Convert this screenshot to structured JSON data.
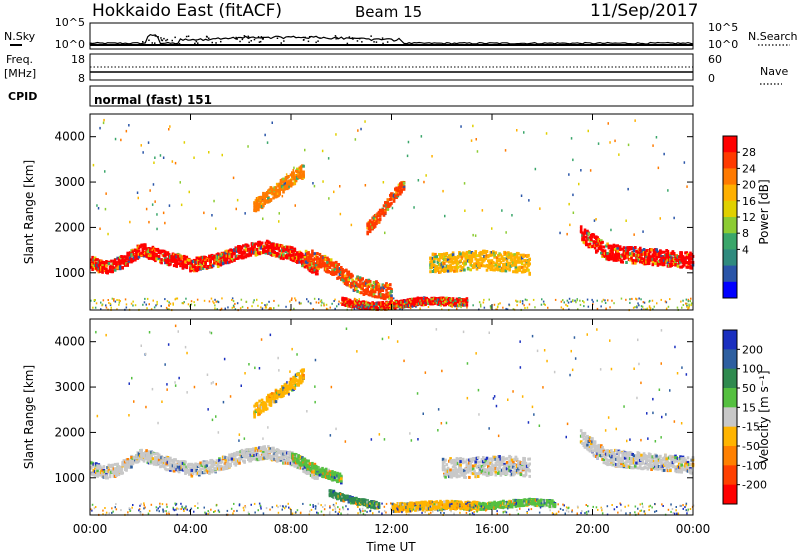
{
  "header": {
    "radar": "Hokkaido East (fitACF)",
    "beam": "Beam 15",
    "date": "11/Sep/2017"
  },
  "labels": {
    "nsky": "N.Sky",
    "nsearch": "N.Search",
    "freq": "Freq.",
    "freq_unit": "[MHz]",
    "nave": "Nave",
    "cpid": "CPID",
    "mode": "normal (fast) 151"
  },
  "noise_axis": {
    "left_ticks": [
      "10^5",
      "10^0"
    ],
    "right_ticks": [
      "10^5",
      "10^0"
    ]
  },
  "freq_axis": {
    "left_ticks": [
      "18",
      "8"
    ],
    "right_ticks": [
      "60",
      "0"
    ]
  },
  "range_ticks": [
    "4000",
    "3000",
    "2000",
    "1000"
  ],
  "range_axis_label": "Slant Range [km]",
  "x_ticks": [
    "00:00",
    "04:00",
    "08:00",
    "12:00",
    "16:00",
    "20:00",
    "00:00"
  ],
  "x_axis_label": "Time UT",
  "power_scale": {
    "label": "Power [dB]",
    "ticks": [
      "28",
      "24",
      "20",
      "16",
      "12",
      "8",
      "4"
    ],
    "colors": [
      "#ff0000",
      "#ff3a00",
      "#ff7a00",
      "#ffb000",
      "#e0d000",
      "#8ccc33",
      "#3aa66a",
      "#2f8a7e",
      "#2a55a8",
      "#0000ff"
    ]
  },
  "velocity_scale": {
    "label": "Velocity [m s⁻¹]",
    "ticks": [
      "200",
      "100",
      "50",
      "15",
      "-15",
      "-50",
      "-100",
      "-200"
    ],
    "colors": [
      "#1a2fbf",
      "#2e5fa0",
      "#2f8a4f",
      "#55c040",
      "#c8c8c8",
      "#ffb400",
      "#ff8000",
      "#ff4000",
      "#ff0000"
    ]
  },
  "chart_data": [
    {
      "type": "line",
      "title": "N.Sky / N.Search noise",
      "x_range_hours": [
        0,
        24
      ],
      "approx_level": "near 10^0 with bursts around 02:30 and 04:00-12:00"
    },
    {
      "type": "line",
      "title": "Freq. / Nave",
      "frequency_MHz": 11,
      "nave_dotted": 30
    },
    {
      "type": "heatmap",
      "title": "Power",
      "x_range_hours": [
        0,
        24
      ],
      "y_range_km": [
        180,
        4500
      ],
      "bands": [
        {
          "t": [
            0,
            0.5,
            1,
            1.5,
            2,
            2.5,
            3,
            3.5,
            4,
            4.5,
            5,
            5.5,
            6,
            6.5,
            7,
            7.5,
            8,
            8.5,
            9
          ],
          "r": [
            1250,
            1150,
            1200,
            1350,
            1550,
            1450,
            1350,
            1300,
            1200,
            1250,
            1300,
            1400,
            1500,
            1550,
            1600,
            1500,
            1450,
            1300,
            1100
          ],
          "w": 280,
          "level": "28"
        },
        {
          "t": [
            8.5,
            9,
            9.5,
            10,
            10.5,
            11,
            11.5,
            12
          ],
          "r": [
            1400,
            1300,
            1200,
            1000,
            800,
            700,
            650,
            600
          ],
          "w": 350,
          "level": "24"
        },
        {
          "t": [
            10,
            10.5,
            11,
            11.5,
            12,
            12.5,
            13,
            13.5,
            14,
            14.5,
            15
          ],
          "r": [
            400,
            350,
            300,
            300,
            320,
            350,
            400,
            420,
            400,
            380,
            400
          ],
          "w": 160,
          "level": "28"
        },
        {
          "t": [
            13.5,
            14,
            15,
            16,
            17,
            17.5
          ],
          "r": [
            1250,
            1250,
            1300,
            1300,
            1250,
            1200
          ],
          "w": 420,
          "level": "16"
        },
        {
          "t": [
            11,
            11.5,
            12,
            12.5
          ],
          "r": [
            2000,
            2300,
            2700,
            3000
          ],
          "w": 250,
          "level": "24"
        },
        {
          "t": [
            19.5,
            20,
            20.5,
            21,
            22,
            23,
            24
          ],
          "r": [
            1900,
            1700,
            1500,
            1450,
            1400,
            1350,
            1300
          ],
          "w": 350,
          "level": "28"
        },
        {
          "t": [
            6.5,
            7,
            7.5,
            8,
            8.5
          ],
          "r": [
            2500,
            2700,
            2900,
            3100,
            3300
          ],
          "w": 300,
          "level": "20"
        }
      ]
    },
    {
      "type": "heatmap",
      "title": "Velocity",
      "x_range_hours": [
        0,
        24
      ],
      "y_range_km": [
        180,
        4500
      ],
      "bands": [
        {
          "t": [
            0,
            0.5,
            1,
            1.5,
            2,
            2.5,
            3,
            3.5,
            4,
            4.5,
            5,
            5.5,
            6,
            6.5,
            7,
            7.5,
            8,
            8.5,
            9
          ],
          "r": [
            1250,
            1150,
            1200,
            1350,
            1550,
            1450,
            1350,
            1300,
            1200,
            1250,
            1300,
            1400,
            1500,
            1550,
            1600,
            1500,
            1450,
            1300,
            1100
          ],
          "w": 280,
          "level": "-15"
        },
        {
          "t": [
            8,
            8.5,
            9,
            9.5,
            10
          ],
          "r": [
            1500,
            1350,
            1200,
            1100,
            1000
          ],
          "w": 200,
          "level": "15"
        },
        {
          "t": [
            9.5,
            10,
            10.5,
            11,
            11.5
          ],
          "r": [
            700,
            600,
            520,
            460,
            420
          ],
          "w": 140,
          "level": "50"
        },
        {
          "t": [
            12,
            12.5,
            13,
            13.5,
            14,
            15,
            15.5
          ],
          "r": [
            380,
            380,
            400,
            420,
            430,
            420,
            400
          ],
          "w": 180,
          "level": "-50"
        },
        {
          "t": [
            14,
            15,
            16,
            17,
            17.5
          ],
          "r": [
            1250,
            1250,
            1300,
            1300,
            1250
          ],
          "w": 420,
          "level": "-15"
        },
        {
          "t": [
            15.5,
            16.5,
            17.5,
            18.5
          ],
          "r": [
            400,
            450,
            500,
            450
          ],
          "w": 140,
          "level": "15"
        },
        {
          "t": [
            19.5,
            20,
            20.5,
            21,
            22,
            23,
            24
          ],
          "r": [
            1900,
            1700,
            1500,
            1450,
            1400,
            1350,
            1300
          ],
          "w": 350,
          "level": "-15"
        },
        {
          "t": [
            6.5,
            7,
            7.5,
            8,
            8.5
          ],
          "r": [
            2500,
            2700,
            2900,
            3100,
            3300
          ],
          "w": 300,
          "level": "-50"
        }
      ]
    }
  ]
}
